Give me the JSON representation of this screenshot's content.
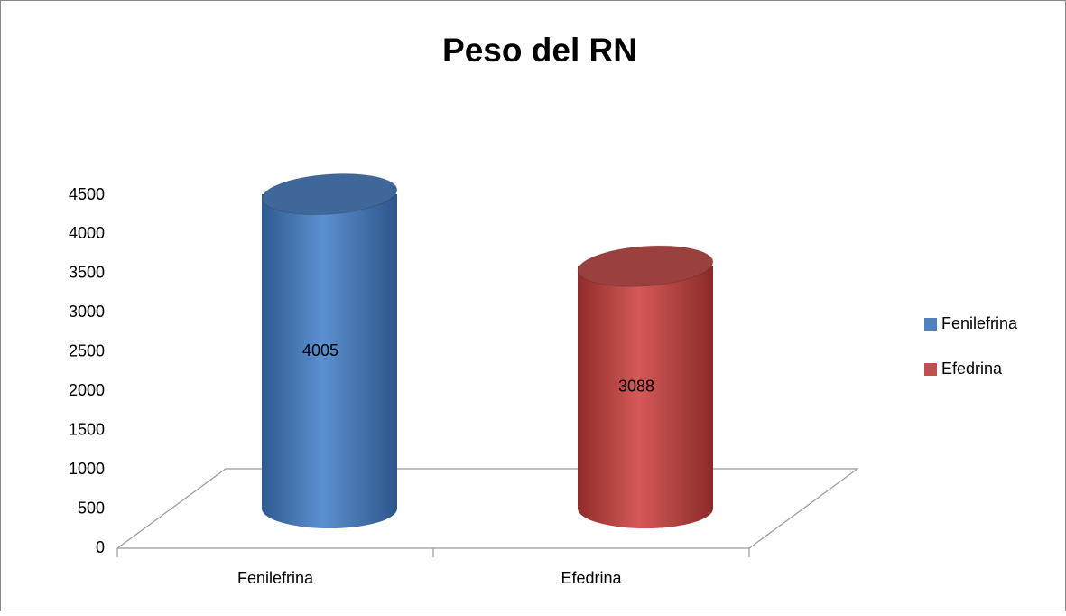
{
  "chart_data": {
    "type": "cylinder",
    "title": "Peso del RN",
    "categories": [
      "Fenilefrina",
      "Efedrina"
    ],
    "values": [
      4005,
      3088
    ],
    "colors": [
      "#4f81bd",
      "#c0504d"
    ],
    "ylim": [
      0,
      4500
    ],
    "yticks": [
      0,
      500,
      1000,
      1500,
      2000,
      2500,
      3000,
      3500,
      4000,
      4500
    ],
    "legend": "right"
  }
}
